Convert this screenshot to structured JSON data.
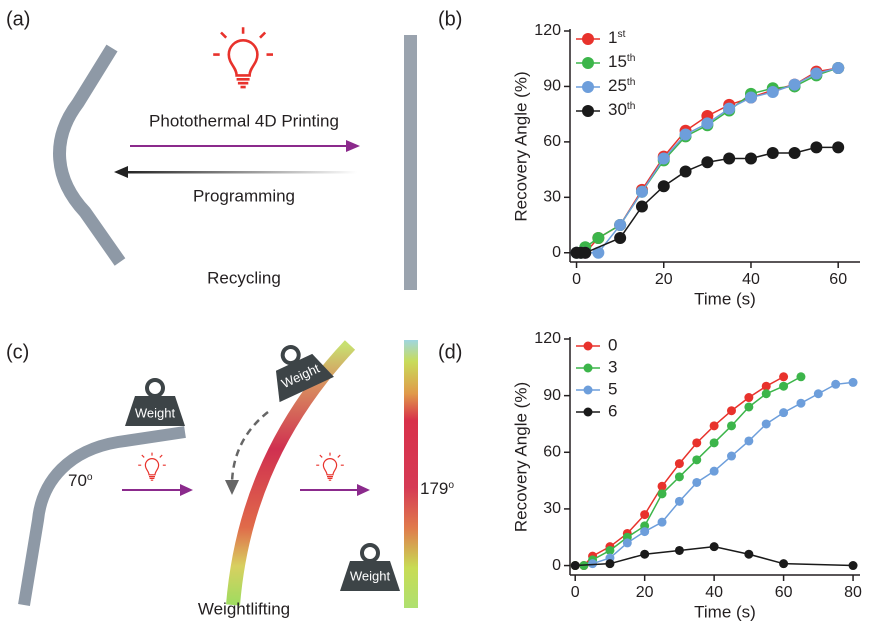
{
  "labels": [
    "(a)",
    "(b)",
    "(c)",
    "(d)"
  ],
  "texts": {
    "printing": "Photothermal 4D Printing",
    "programming": "Programming",
    "recycling": "Recycling",
    "weightlifting": "Weightlifting",
    "weight": "Weight",
    "angle_start": "70o",
    "angle_end": "179o"
  },
  "chart_data": [
    {
      "type": "line",
      "xlabel": "Time (s)",
      "ylabel": "Recovery Angle (%)",
      "xlim": [
        -1.5,
        65
      ],
      "ylim": [
        -5,
        120
      ],
      "xticks": [
        0,
        20,
        40,
        60
      ],
      "yticks": [
        0,
        30,
        60,
        90,
        120
      ],
      "series": [
        {
          "name": "1st",
          "color": "#e8322c",
          "x": [
            0,
            1,
            2,
            5,
            10,
            15,
            20,
            25,
            30,
            35,
            40,
            45,
            50,
            55,
            60
          ],
          "values": [
            0,
            0,
            0,
            8,
            15,
            34,
            52,
            66,
            74,
            80,
            84,
            88,
            91,
            98,
            100
          ]
        },
        {
          "name": "15th",
          "color": "#3cb54a",
          "x": [
            0,
            1,
            2,
            5,
            10,
            15,
            20,
            25,
            30,
            35,
            40,
            45,
            50,
            55,
            60
          ],
          "values": [
            0,
            0,
            3,
            8,
            15,
            33,
            50,
            63,
            69,
            77,
            86,
            89,
            90,
            96,
            100
          ]
        },
        {
          "name": "25th",
          "color": "#6d9edb",
          "x": [
            0,
            1,
            2,
            5,
            10,
            15,
            20,
            25,
            30,
            35,
            40,
            45,
            50,
            55,
            60
          ],
          "values": [
            0,
            0,
            0,
            0,
            15,
            33,
            51,
            64,
            70,
            78,
            84,
            87,
            91,
            97,
            100
          ]
        },
        {
          "name": "30th",
          "color": "#1a1a1a",
          "x": [
            0,
            1,
            2,
            10,
            15,
            20,
            25,
            30,
            35,
            40,
            45,
            50,
            55,
            60
          ],
          "values": [
            0,
            0,
            0,
            8,
            25,
            36,
            44,
            49,
            51,
            51,
            54,
            54,
            57,
            57
          ]
        }
      ]
    },
    {
      "type": "line",
      "xlabel": "Time (s)",
      "ylabel": "Recovery Angle (%)",
      "xlim": [
        -1.5,
        82
      ],
      "ylim": [
        -5,
        120
      ],
      "xticks": [
        0,
        20,
        40,
        60,
        80
      ],
      "yticks": [
        0,
        30,
        60,
        90,
        120
      ],
      "series": [
        {
          "name": "0",
          "color": "#e8322c",
          "x": [
            0,
            2.5,
            5,
            10,
            15,
            20,
            25,
            30,
            35,
            40,
            45,
            50,
            55,
            60
          ],
          "values": [
            0,
            0,
            5,
            10,
            17,
            27,
            42,
            54,
            65,
            74,
            82,
            89,
            95,
            100
          ]
        },
        {
          "name": "3",
          "color": "#3cb54a",
          "x": [
            0,
            2.5,
            5,
            10,
            15,
            20,
            25,
            30,
            35,
            40,
            45,
            50,
            55,
            60,
            65
          ],
          "values": [
            0,
            0,
            3,
            8,
            15,
            21,
            38,
            47,
            56,
            65,
            74,
            84,
            91,
            95,
            100
          ]
        },
        {
          "name": "5",
          "color": "#6d9edb",
          "x": [
            5,
            10,
            15,
            20,
            25,
            30,
            35,
            40,
            45,
            50,
            55,
            60,
            65,
            70,
            75,
            80
          ],
          "values": [
            1,
            4,
            12,
            18,
            23,
            34,
            44,
            50,
            58,
            66,
            75,
            81,
            86,
            91,
            96,
            97
          ]
        },
        {
          "name": "6",
          "color": "#1a1a1a",
          "x": [
            0,
            10,
            20,
            30,
            40,
            50,
            60,
            80
          ],
          "values": [
            0,
            1,
            6,
            8,
            10,
            6,
            1,
            0
          ]
        }
      ]
    }
  ]
}
